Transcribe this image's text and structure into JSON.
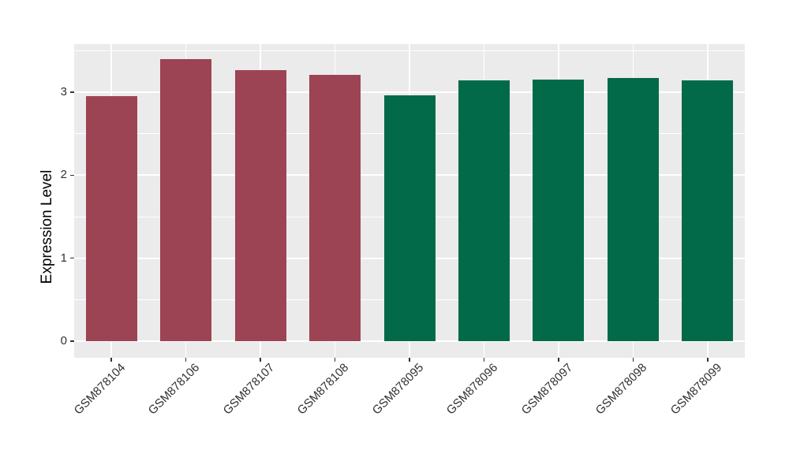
{
  "chart_data": {
    "type": "bar",
    "title": "",
    "ylabel": "Expression Level",
    "xlabel": "",
    "categories": [
      "GSM878104",
      "GSM878106",
      "GSM878107",
      "GSM878108",
      "GSM878095",
      "GSM878096",
      "GSM878097",
      "GSM878098",
      "GSM878099"
    ],
    "values": [
      2.95,
      3.4,
      3.27,
      3.21,
      2.96,
      3.14,
      3.15,
      3.17,
      3.14
    ],
    "bar_colors": [
      "#9C4453",
      "#9C4453",
      "#9C4453",
      "#9C4453",
      "#026A49",
      "#026A49",
      "#026A49",
      "#026A49",
      "#026A49"
    ],
    "color_groups": [
      {
        "color": "#9C4453",
        "categories": [
          "GSM878104",
          "GSM878106",
          "GSM878107",
          "GSM878108"
        ]
      },
      {
        "color": "#026A49",
        "categories": [
          "GSM878095",
          "GSM878096",
          "GSM878097",
          "GSM878098",
          "GSM878099"
        ]
      }
    ],
    "y_ticks": [
      "0",
      "1",
      "2",
      "3"
    ],
    "y_tick_values": [
      0,
      1,
      2,
      3
    ],
    "y_minor_tick_values": [
      0.5,
      1.5,
      2.5,
      3.5
    ],
    "ylim": [
      -0.17,
      3.57
    ],
    "grid": true,
    "legend": "none",
    "panel_bg": "#EBEBEB",
    "grid_color": "#FFFFFF",
    "axis_text_color": "#303030",
    "x_tick_rotation": 45
  }
}
